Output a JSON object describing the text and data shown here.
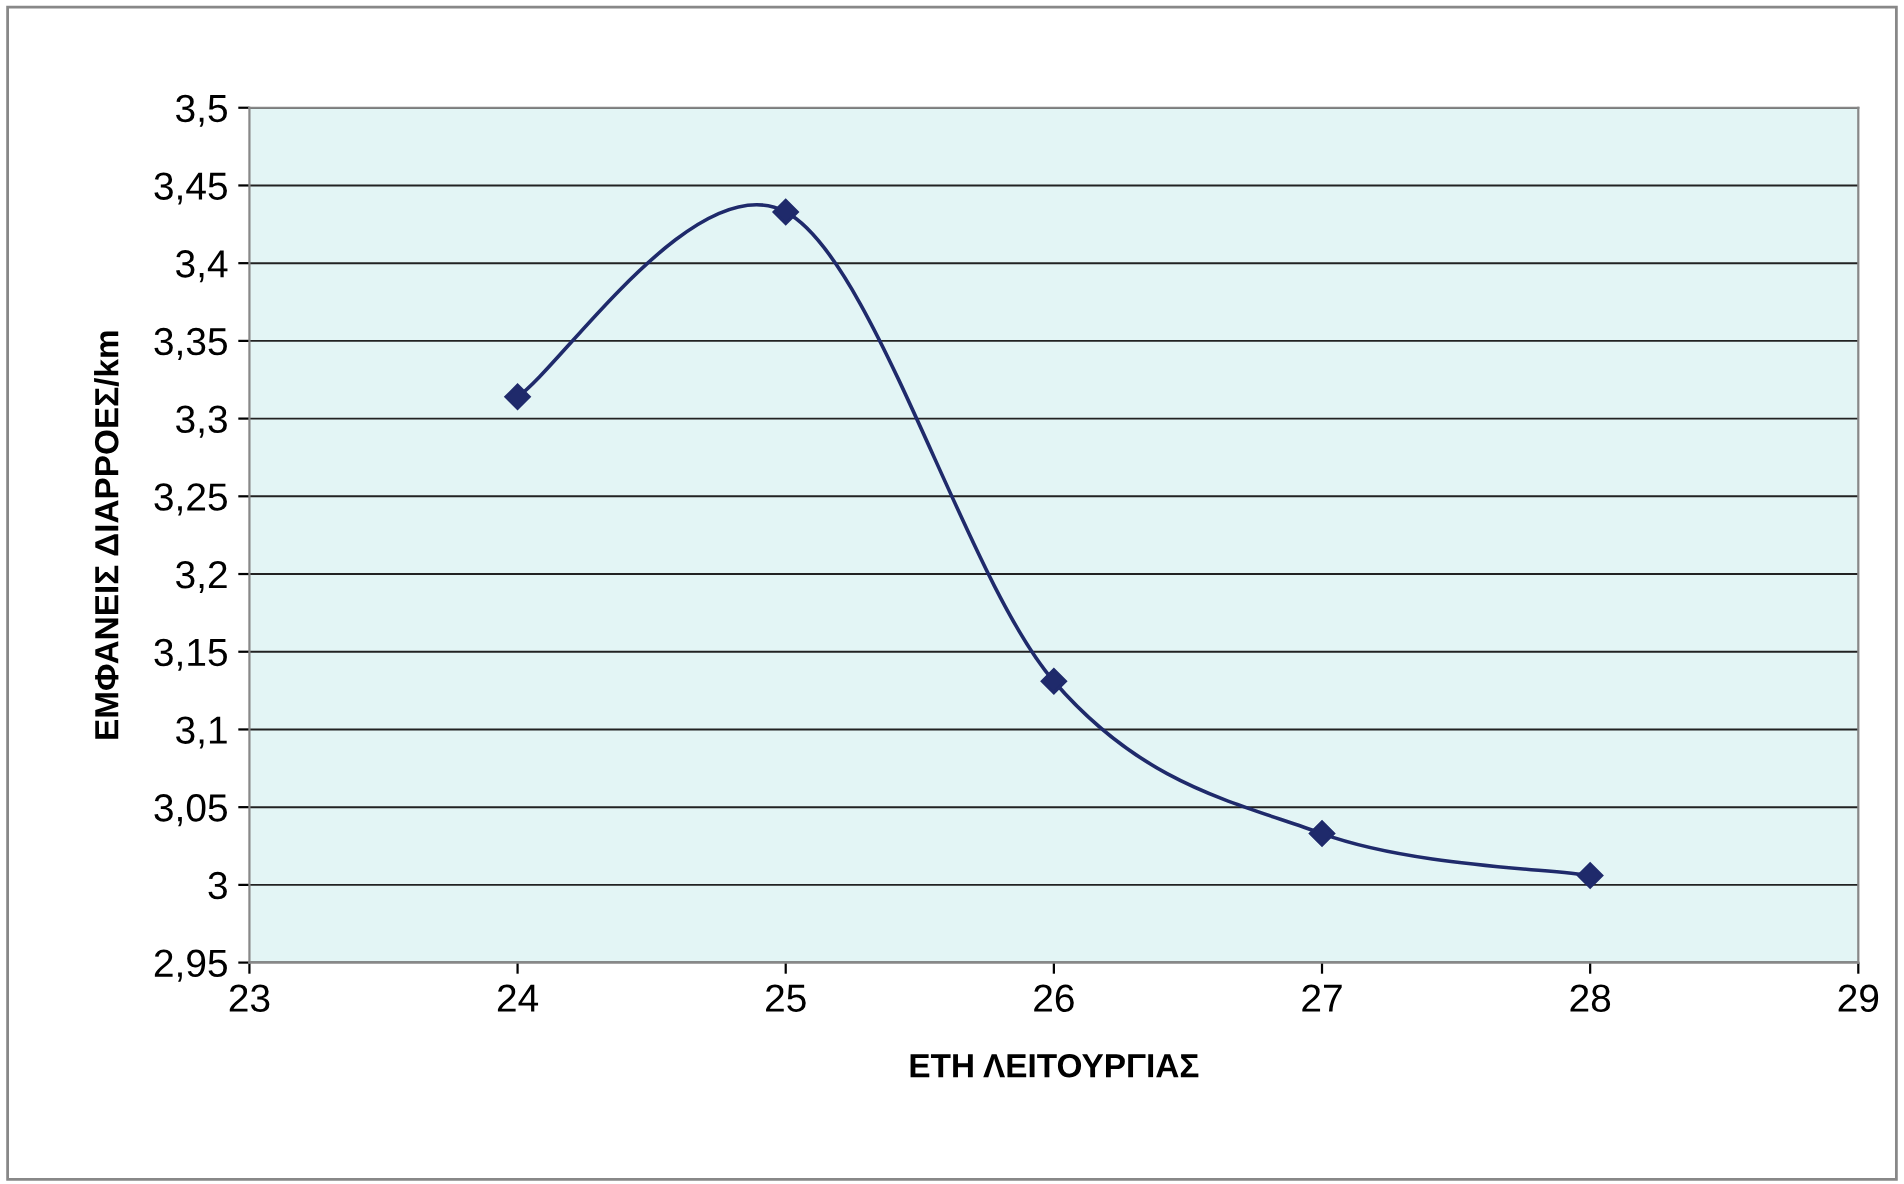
{
  "chart_data": {
    "type": "line",
    "xlabel": "ΕΤΗ ΛΕΙΤΟΥΡΓΙΑΣ",
    "ylabel": "ΕΜΦΑΝΕΙΣ ΔΙΑΡΡΟΕΣ/km",
    "x": [
      24,
      25,
      26,
      27,
      28
    ],
    "series": [
      {
        "color": "#1f2a6b",
        "values": [
          3.314,
          3.433,
          3.131,
          3.033,
          3.006
        ]
      }
    ],
    "marker": "diamond",
    "line_style": "solid",
    "grid": "y",
    "legend": false,
    "xlim": [
      23,
      29
    ],
    "xticks": [
      23,
      24,
      25,
      26,
      27,
      28,
      29
    ],
    "ylim": [
      2.95,
      3.5
    ],
    "yticks": [
      {
        "value": 2.95,
        "label": "2,95"
      },
      {
        "value": 3,
        "label": "3"
      },
      {
        "value": 3.05,
        "label": "3,05"
      },
      {
        "value": 3.1,
        "label": "3,1"
      },
      {
        "value": 3.15,
        "label": "3,15"
      },
      {
        "value": 3.2,
        "label": "3,2"
      },
      {
        "value": 3.25,
        "label": "3,25"
      },
      {
        "value": 3.3,
        "label": "3,3"
      },
      {
        "value": 3.35,
        "label": "3,35"
      },
      {
        "value": 3.4,
        "label": "3,4"
      },
      {
        "value": 3.45,
        "label": "3,45"
      },
      {
        "value": 3.5,
        "label": "3,5"
      }
    ]
  }
}
